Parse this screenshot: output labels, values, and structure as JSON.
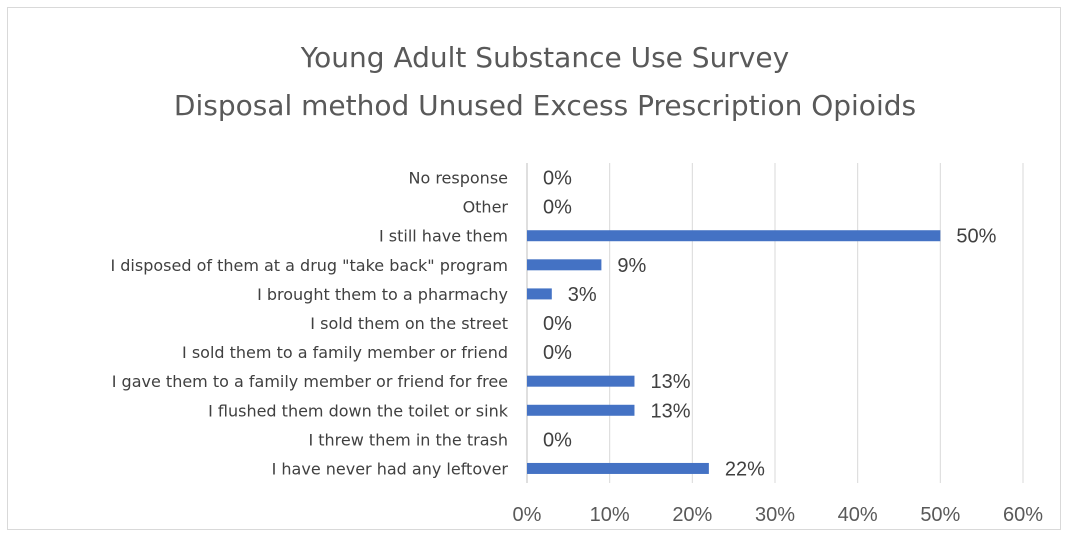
{
  "chart_data": {
    "type": "bar",
    "orientation": "horizontal",
    "title": "Young Adult Substance Use Survey",
    "subtitle": "Disposal method Unused Excess Prescription Opioids",
    "categories": [
      "No response",
      "Other",
      "I still have them",
      "I disposed of them at a drug \"take back\" program",
      "I brought them to a pharmachy",
      "I sold them on the street",
      "I sold them to a family member or friend",
      "I gave them to a family member or friend for free",
      "I flushed them down the toilet or sink",
      "I threw them in the trash",
      "I have never had any leftover"
    ],
    "values": [
      0,
      0,
      50,
      9,
      3,
      0,
      0,
      13,
      13,
      0,
      22
    ],
    "data_labels": [
      "0%",
      "0%",
      "50%",
      "9%",
      "3%",
      "0%",
      "0%",
      "13%",
      "13%",
      "0%",
      "22%"
    ],
    "xlim": [
      0,
      60
    ],
    "x_ticks": [
      0,
      10,
      20,
      30,
      40,
      50,
      60
    ],
    "x_tick_labels": [
      "0%",
      "10%",
      "20%",
      "30%",
      "40%",
      "50%",
      "60%"
    ],
    "xlabel": "",
    "ylabel": "",
    "grid": true,
    "legend": "none",
    "bar_color": "#4472c4"
  }
}
